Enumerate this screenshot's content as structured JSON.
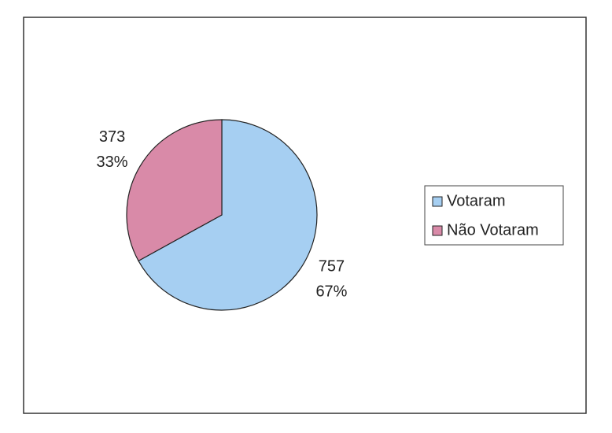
{
  "chart_data": {
    "type": "pie",
    "categories": [
      "Votaram",
      "Não Votaram"
    ],
    "values": [
      757,
      373
    ],
    "percents": [
      67,
      33
    ],
    "percent_labels": [
      "67%",
      "33%"
    ],
    "colors": [
      "#a6cff2",
      "#d98aa8"
    ],
    "legend": "right"
  }
}
